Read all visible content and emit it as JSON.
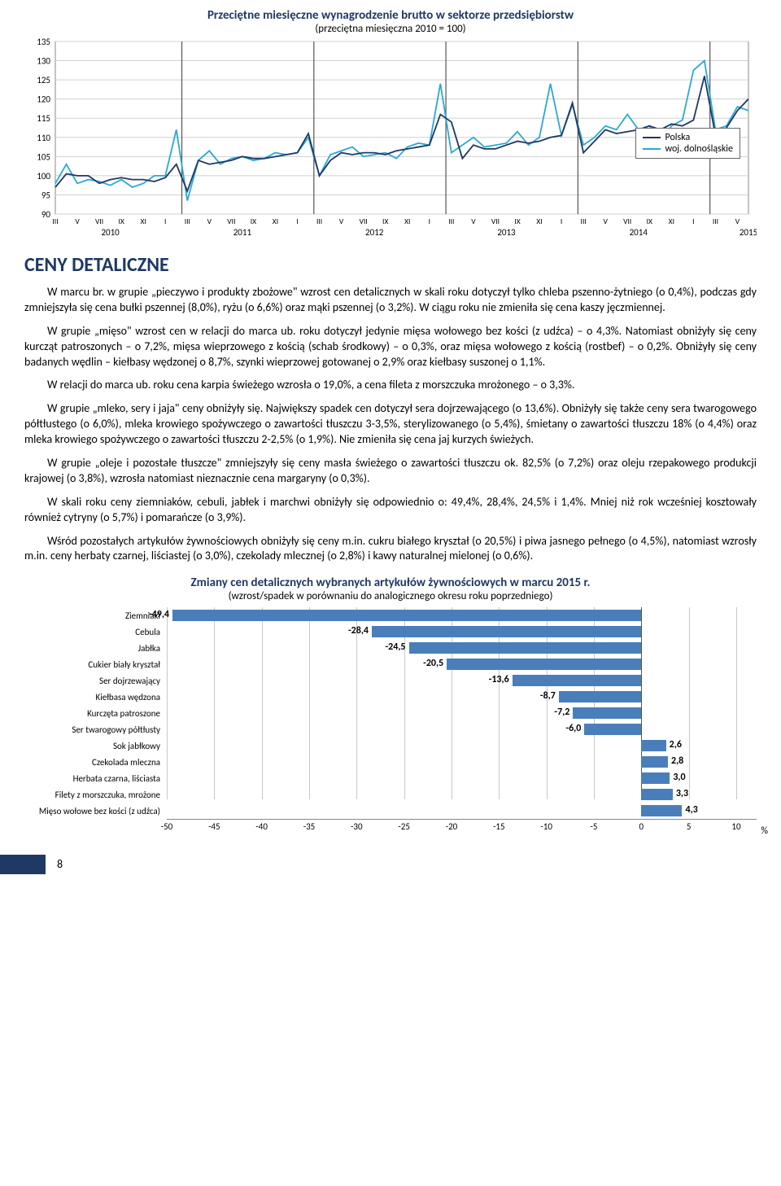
{
  "lineChart": {
    "title": "Przeciętne miesięczne wynagrodzenie brutto w sektorze przedsiębiorstw",
    "subtitle": "(przeciętna miesięczna 2010 = 100)",
    "ylim": [
      90,
      135
    ],
    "ytick_step": 5,
    "yticks": [
      90,
      95,
      100,
      105,
      110,
      115,
      120,
      125,
      130,
      135
    ],
    "years": [
      "2010",
      "2011",
      "2012",
      "2013",
      "2014",
      "2015"
    ],
    "x_minor": [
      "III",
      "V",
      "VII",
      "IX",
      "XI",
      "I"
    ],
    "legend": {
      "series1": "Polska",
      "series2": "woj. dolnośląskie"
    },
    "colors": {
      "polska": "#1f3864",
      "woj": "#2aa9d2",
      "grid": "#d0d0d0",
      "year_divider": "#555"
    },
    "polska": [
      97,
      100.5,
      100,
      100,
      98,
      99,
      99.5,
      99,
      99,
      98.5,
      99.5,
      103,
      96,
      104,
      103,
      103.5,
      104,
      105,
      104.5,
      104.5,
      105,
      105.5,
      106,
      111,
      100,
      104,
      106,
      105.5,
      106,
      106,
      105.5,
      106.5,
      107,
      107.5,
      108,
      116,
      114,
      104.5,
      108,
      107,
      107,
      108,
      109,
      108.5,
      109,
      110,
      110.5,
      119,
      106,
      109,
      112,
      111,
      111.5,
      112,
      113,
      112,
      113.5,
      113,
      114.5,
      126,
      110.5,
      112.5,
      117,
      120
    ],
    "woj": [
      98,
      103,
      98,
      99,
      98.5,
      97.5,
      99,
      97,
      98,
      100,
      100,
      112,
      93.5,
      104,
      106.5,
      103,
      104.5,
      105,
      104,
      104.5,
      106,
      105.5,
      106,
      110,
      100,
      105.5,
      106.5,
      107.5,
      105,
      105.5,
      106,
      104.5,
      107.5,
      108.5,
      108,
      124,
      106,
      108,
      110,
      107.5,
      108,
      108.5,
      111.5,
      108,
      110,
      124,
      110.5,
      118.5,
      108,
      110,
      113,
      112,
      116,
      112,
      113,
      108.5,
      113,
      114.5,
      127.5,
      130,
      112,
      113,
      118,
      117
    ]
  },
  "sectionTitle": "CENY DETALICZNE",
  "paragraphs": {
    "p1": "W marcu br. w grupie „pieczywo i produkty zbożowe\" wzrost cen detalicznych w skali roku dotyczył tylko chleba pszenno-żytniego (o 0,4%), podczas gdy zmniejszyła się cena bułki pszennej (8,0%), ryżu (o 6,6%) oraz mąki pszennej (o 3,2%). W ciągu roku nie zmieniła się cena kaszy jęczmiennej.",
    "p2": "W grupie „mięso\" wzrost cen w relacji do marca ub. roku dotyczył jedynie mięsa wołowego bez kości (z udźca) – o 4,3%. Natomiast obniżyły się ceny kurcząt patroszonych – o 7,2%, mięsa wieprzowego z kością (schab środkowy) – o 0,3%, oraz mięsa wołowego z kością (rostbef) – o 0,2%. Obniżyły się ceny badanych wędlin – kiełbasy wędzonej o 8,7%, szynki wieprzowej gotowanej o 2,9% oraz kiełbasy suszonej o 1,1%.",
    "p3": "W relacji do marca ub. roku cena karpia świeżego wzrosła o 19,0%, a cena fileta z morszczuka mrożonego – o 3,3%.",
    "p4": "W grupie „mleko, sery i jaja\" ceny obniżyły się. Największy spadek cen dotyczył sera dojrzewającego (o 13,6%). Obniżyły się także ceny sera twarogowego półtłustego (o 6,0%), mleka krowiego spożywczego o zawartości tłuszczu 3-3,5%, sterylizowanego (o 5,4%), śmietany o zawartości tłuszczu 18% (o 4,4%) oraz mleka krowiego spożywczego o zawartości tłuszczu 2-2,5% (o 1,9%). Nie zmieniła się cena jaj kurzych świeżych.",
    "p5": "W grupie „oleje i pozostałe tłuszcze\" zmniejszyły się ceny masła świeżego o zawartości tłuszczu ok. 82,5% (o 7,2%) oraz oleju rzepakowego produkcji krajowej (o 3,8%), wzrosła natomiast nieznacznie cena margaryny (o 0,3%).",
    "p6": "W skali roku ceny ziemniaków, cebuli, jabłek i marchwi obniżyły się odpowiednio o: 49,4%, 28,4%, 24,5% i 1,4%. Mniej niż rok wcześniej kosztowały również cytryny (o 5,7%) i pomarańcze (o 3,9%).",
    "p7": "Wśród pozostałych artykułów żywnościowych obniżyły się ceny m.in. cukru białego kryształ (o 20,5%) i piwa jasnego pełnego (o 4,5%), natomiast wzrosły m.in. ceny herbaty czarnej, liściastej (o 3,0%), czekolady mlecznej (o 2,8%) i kawy naturalnej mielonej (o 0,6%)."
  },
  "barChart": {
    "title": "Zmiany cen detalicznych wybranych artykułów żywnościowych w marcu 2015 r.",
    "subtitle": "(wzrost/spadek w porównaniu do analogicznego okresu roku poprzedniego)",
    "xmin": -50,
    "xmax": 10,
    "xtick_step": 5,
    "xticks": [
      -50,
      -45,
      -40,
      -35,
      -30,
      -25,
      -20,
      -15,
      -10,
      -5,
      0,
      5,
      10
    ],
    "bar_color": "#4a7ebb",
    "grid_color": "#c8c8c8",
    "unit": "%",
    "items": [
      {
        "label": "Ziemniaki",
        "value": -49.4,
        "display": "-49,4"
      },
      {
        "label": "Cebula",
        "value": -28.4,
        "display": "-28,4"
      },
      {
        "label": "Jabłka",
        "value": -24.5,
        "display": "-24,5"
      },
      {
        "label": "Cukier biały kryształ",
        "value": -20.5,
        "display": "-20,5"
      },
      {
        "label": "Ser dojrzewający",
        "value": -13.6,
        "display": "-13,6"
      },
      {
        "label": "Kiełbasa wędzona",
        "value": -8.7,
        "display": "-8,7"
      },
      {
        "label": "Kurczęta patroszone",
        "value": -7.2,
        "display": "-7,2"
      },
      {
        "label": "Ser twarogowy półtłusty",
        "value": -6.0,
        "display": "-6,0"
      },
      {
        "label": "Sok jabłkowy",
        "value": 2.6,
        "display": "2,6"
      },
      {
        "label": "Czekolada mleczna",
        "value": 2.8,
        "display": "2,8"
      },
      {
        "label": "Herbata czarna, liściasta",
        "value": 3.0,
        "display": "3,0"
      },
      {
        "label": "Filety z morszczuka, mrożone",
        "value": 3.3,
        "display": "3,3"
      },
      {
        "label": "Mięso wołowe bez kości (z udźca)",
        "value": 4.3,
        "display": "4,3"
      }
    ]
  },
  "pageNumber": "8"
}
